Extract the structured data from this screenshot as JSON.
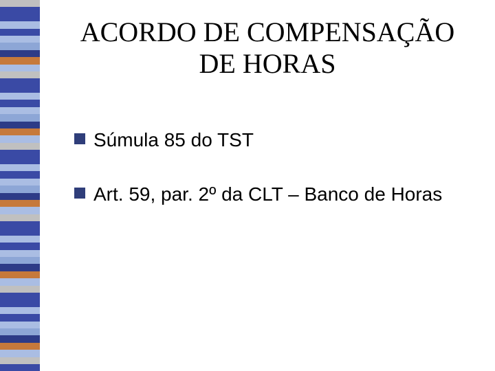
{
  "slide": {
    "title": "ACORDO DE COMPENSAÇÃO DE HORAS",
    "bullets": [
      {
        "text": "Súmula 85 do TST"
      },
      {
        "text": "Art. 59, par. 2º da CLT – Banco de Horas"
      }
    ],
    "bullet_marker_color": "#2f3e7a",
    "title_color": "#000000",
    "text_color": "#000000",
    "background_color": "#ffffff",
    "title_fontsize": 40,
    "bullet_fontsize": 28
  },
  "sidebar": {
    "stripes": [
      "#c0c0c0",
      "#3a4aa5",
      "#3a4aa5",
      "#aabde3",
      "#3a4aa5",
      "#aabde3",
      "#8da6d6",
      "#2d3b87",
      "#c6793b",
      "#aabde3",
      "#c0c0c0",
      "#3a4aa5",
      "#3a4aa5",
      "#aabde3",
      "#3a4aa5",
      "#aabde3",
      "#8da6d6",
      "#2d3b87",
      "#c6793b",
      "#aabde3",
      "#c0c0c0",
      "#3a4aa5",
      "#3a4aa5",
      "#aabde3",
      "#3a4aa5",
      "#aabde3",
      "#8da6d6",
      "#2d3b87",
      "#c6793b",
      "#aabde3",
      "#c0c0c0",
      "#3a4aa5",
      "#3a4aa5",
      "#aabde3",
      "#3a4aa5",
      "#aabde3",
      "#8da6d6",
      "#2d3b87",
      "#c6793b",
      "#aabde3",
      "#c0c0c0",
      "#3a4aa5",
      "#3a4aa5",
      "#aabde3",
      "#3a4aa5",
      "#aabde3",
      "#8da6d6",
      "#2d3b87",
      "#c6793b",
      "#aabde3",
      "#c0c0c0",
      "#3a4aa5"
    ]
  }
}
